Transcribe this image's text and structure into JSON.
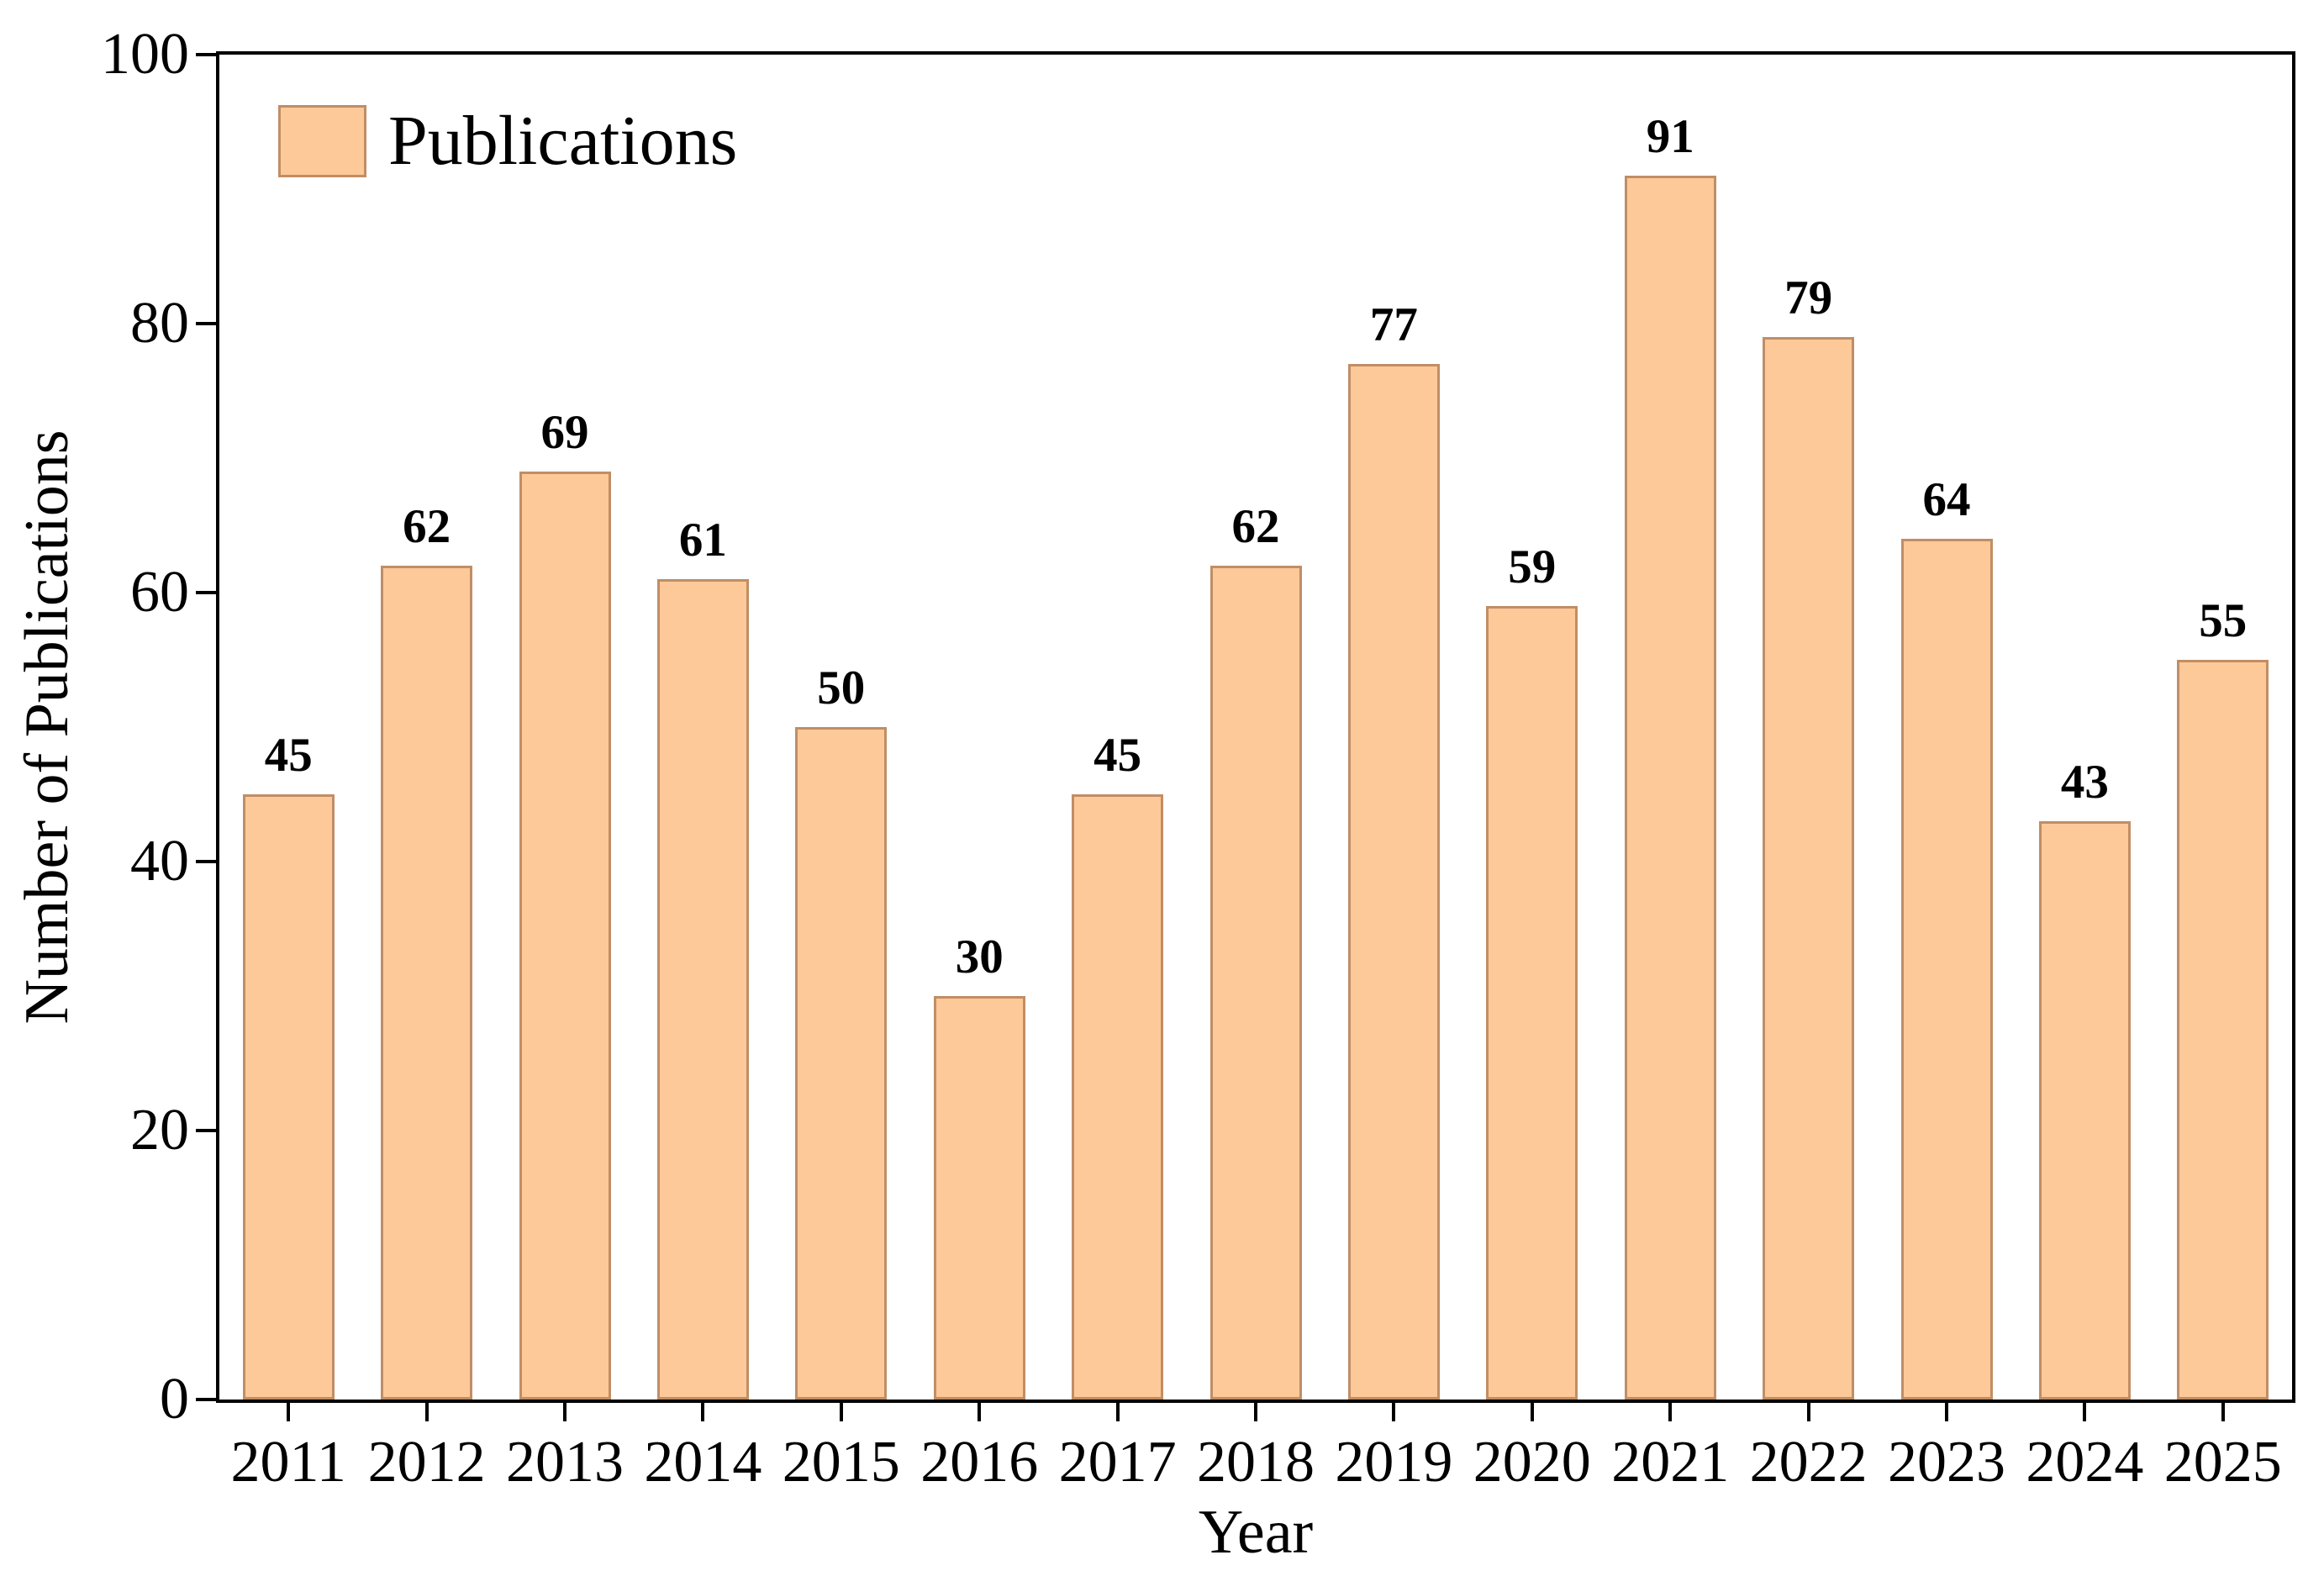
{
  "chart_data": {
    "type": "bar",
    "title": "",
    "xlabel": "Year",
    "ylabel": "Number of Publications",
    "categories": [
      "2011",
      "2012",
      "2013",
      "2014",
      "2015",
      "2016",
      "2017",
      "2018",
      "2019",
      "2020",
      "2021",
      "2022",
      "2023",
      "2024",
      "2025"
    ],
    "values": [
      45,
      62,
      69,
      61,
      50,
      30,
      45,
      62,
      77,
      59,
      91,
      79,
      64,
      43,
      55
    ],
    "ylim": [
      0,
      100
    ],
    "yticks": [
      0,
      20,
      40,
      60,
      80,
      100
    ],
    "grid": false,
    "value_labels": true,
    "legend": {
      "label": "Publications",
      "position": "upper-left"
    },
    "colors": {
      "bar_fill": "#FDC998",
      "bar_edge": "#C08E66",
      "axis": "#000000",
      "text": "#000000",
      "background": "#ffffff"
    }
  }
}
